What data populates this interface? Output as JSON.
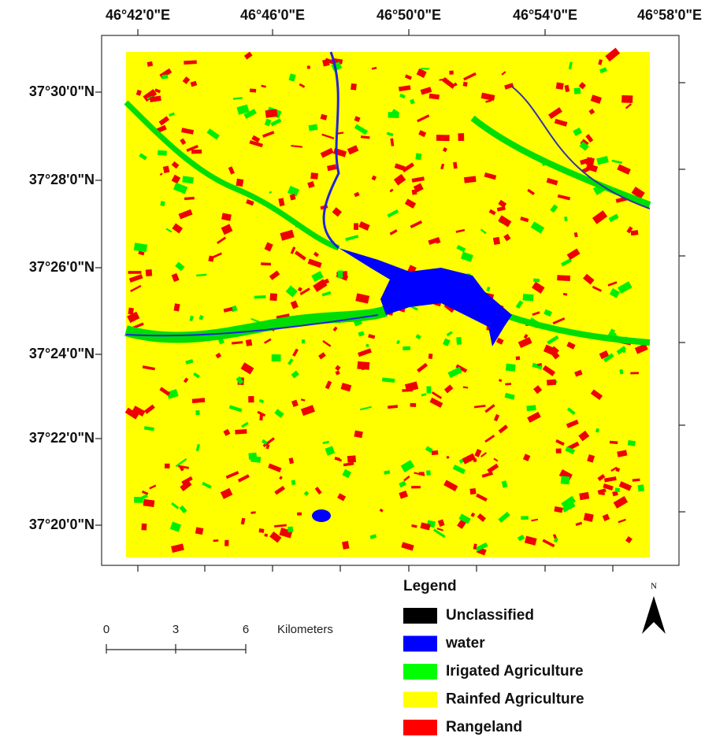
{
  "axes": {
    "top_labels": [
      "46°42'0\"E",
      "46°46'0\"E",
      "46°50'0\"E",
      "46°54'0\"E",
      "46°58'0\"E"
    ],
    "left_labels": [
      "37°30'0\"N",
      "37°28'0\"N",
      "37°26'0\"N",
      "37°24'0\"N",
      "37°22'0\"N",
      "37°20'0\"N"
    ]
  },
  "legend": {
    "title": "Legend",
    "items": [
      {
        "label": "Unclassified",
        "color": "#000000"
      },
      {
        "label": "water",
        "color": "#0000ff"
      },
      {
        "label": "Irigated Agriculture",
        "color": "#00ff00"
      },
      {
        "label": "Rainfed Agriculture",
        "color": "#ffff00"
      },
      {
        "label": "Rangeland",
        "color": "#ff0000"
      }
    ]
  },
  "scale_bar": {
    "labels": [
      "0",
      "3",
      "6"
    ],
    "unit": "Kilometers"
  },
  "north_arrow": {
    "label": "N"
  }
}
